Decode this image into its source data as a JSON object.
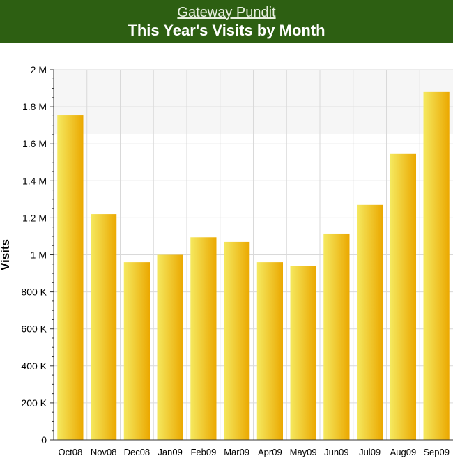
{
  "header": {
    "site_link": "Gateway Pundit",
    "title": "This Year's Visits by Month"
  },
  "colors": {
    "header_bg": "#2d5f12",
    "bar_light": "#f5e960",
    "bar_dark": "#eba800",
    "grid": "#d9d9d9"
  },
  "chart_data": {
    "type": "bar",
    "title": "This Year's Visits by Month",
    "xlabel": "",
    "ylabel": "Visits",
    "ylim": [
      0,
      2000000
    ],
    "yticks": [
      0,
      200000,
      400000,
      600000,
      800000,
      1000000,
      1200000,
      1400000,
      1600000,
      1800000,
      2000000
    ],
    "ytick_labels": [
      "0",
      "200 K",
      "400 K",
      "600 K",
      "800 K",
      "1 M",
      "1.2 M",
      "1.4 M",
      "1.6 M",
      "1.8 M",
      "2 M"
    ],
    "categories": [
      "Oct08",
      "Nov08",
      "Dec08",
      "Jan09",
      "Feb09",
      "Mar09",
      "Apr09",
      "May09",
      "Jun09",
      "Jul09",
      "Aug09",
      "Sep09"
    ],
    "values": [
      1755000,
      1220000,
      960000,
      1000000,
      1095000,
      1070000,
      960000,
      940000,
      1115000,
      1270000,
      1545000,
      1880000
    ],
    "grid": true,
    "legend": "none"
  }
}
